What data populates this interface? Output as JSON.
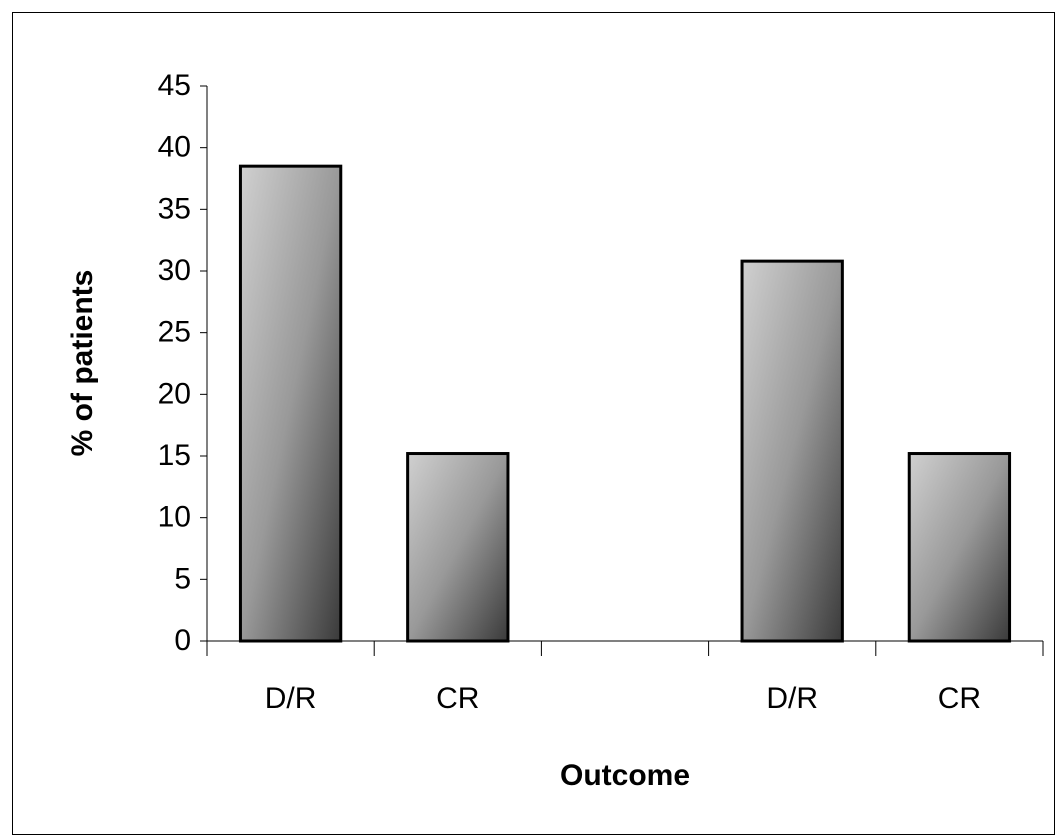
{
  "chart_data": {
    "type": "bar",
    "y_label": "% of patients",
    "x_label": "Outcome",
    "categories": [
      "D/R",
      "CR",
      null,
      "D/R",
      "CR"
    ],
    "values": [
      38.5,
      15.2,
      null,
      30.8,
      15.2
    ],
    "color": "#999999",
    "ylim": [
      0,
      45
    ],
    "yticks": [
      0,
      5,
      10,
      15,
      20,
      25,
      30,
      35,
      40,
      45
    ],
    "grid": false
  }
}
